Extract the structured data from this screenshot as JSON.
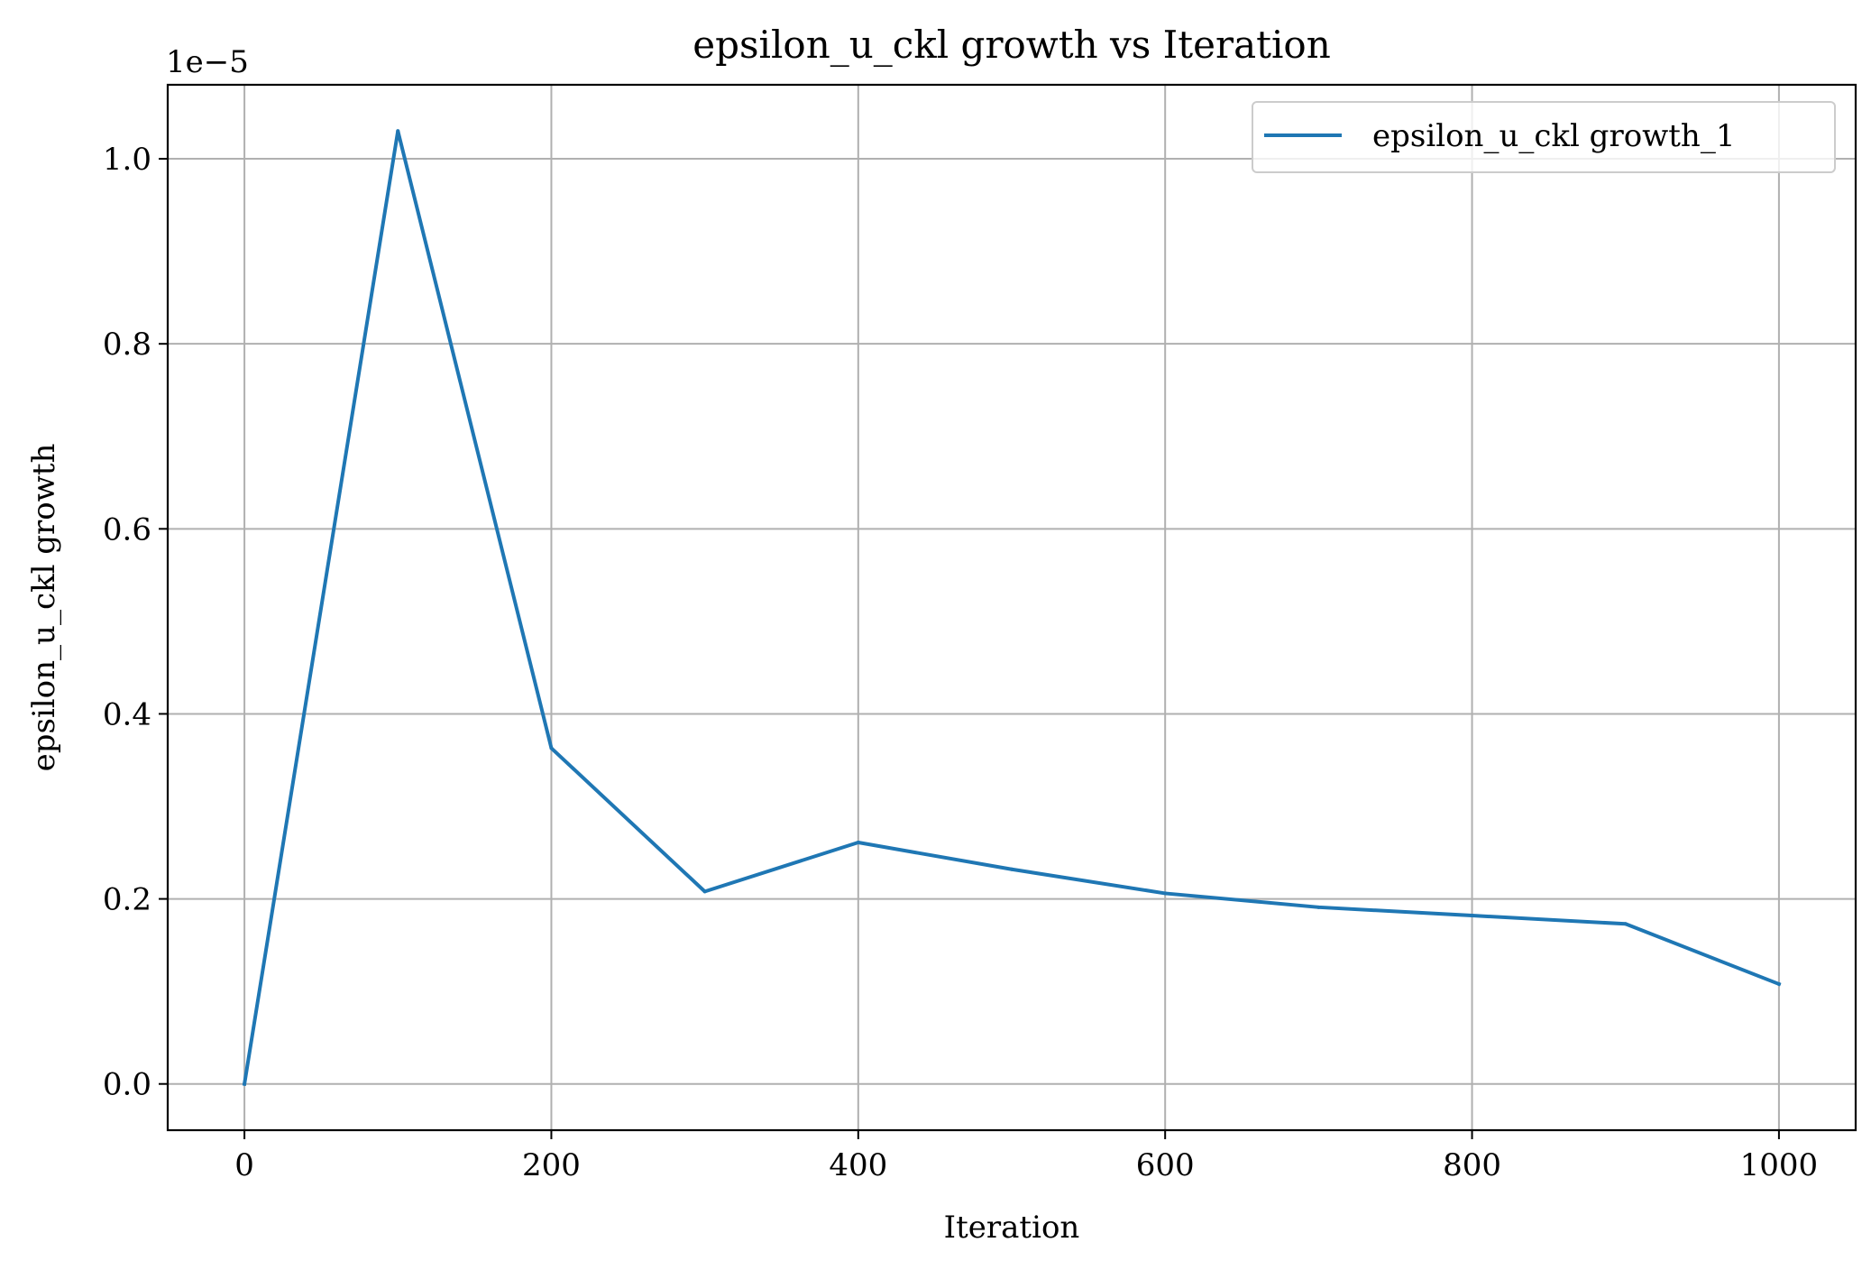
{
  "chart_data": {
    "type": "line",
    "title": "epsilon_u_ckl growth vs Iteration",
    "xlabel": "Iteration",
    "ylabel": "epsilon_u_ckl growth",
    "y_offset_label": "1e−5",
    "xlim": [
      -50,
      1050
    ],
    "ylim": [
      -0.05,
      1.08
    ],
    "y_scale_factor": 1e-05,
    "x_ticks": [
      0,
      200,
      400,
      600,
      800,
      1000
    ],
    "x_tick_labels": [
      "0",
      "200",
      "400",
      "600",
      "800",
      "1000"
    ],
    "y_ticks": [
      0.0,
      0.2,
      0.4,
      0.6,
      0.8,
      1.0
    ],
    "y_tick_labels": [
      "0.0",
      "0.2",
      "0.4",
      "0.6",
      "0.8",
      "1.0"
    ],
    "grid": true,
    "legend_position": "top-right",
    "x": [
      0,
      100,
      200,
      300,
      400,
      500,
      600,
      700,
      800,
      900,
      1000
    ],
    "series": [
      {
        "name": "epsilon_u_ckl growth_1",
        "color": "#1f77b4",
        "values": [
          0.0,
          1.03,
          0.363,
          0.208,
          0.261,
          0.232,
          0.206,
          0.191,
          0.182,
          0.173,
          0.108
        ]
      }
    ]
  }
}
